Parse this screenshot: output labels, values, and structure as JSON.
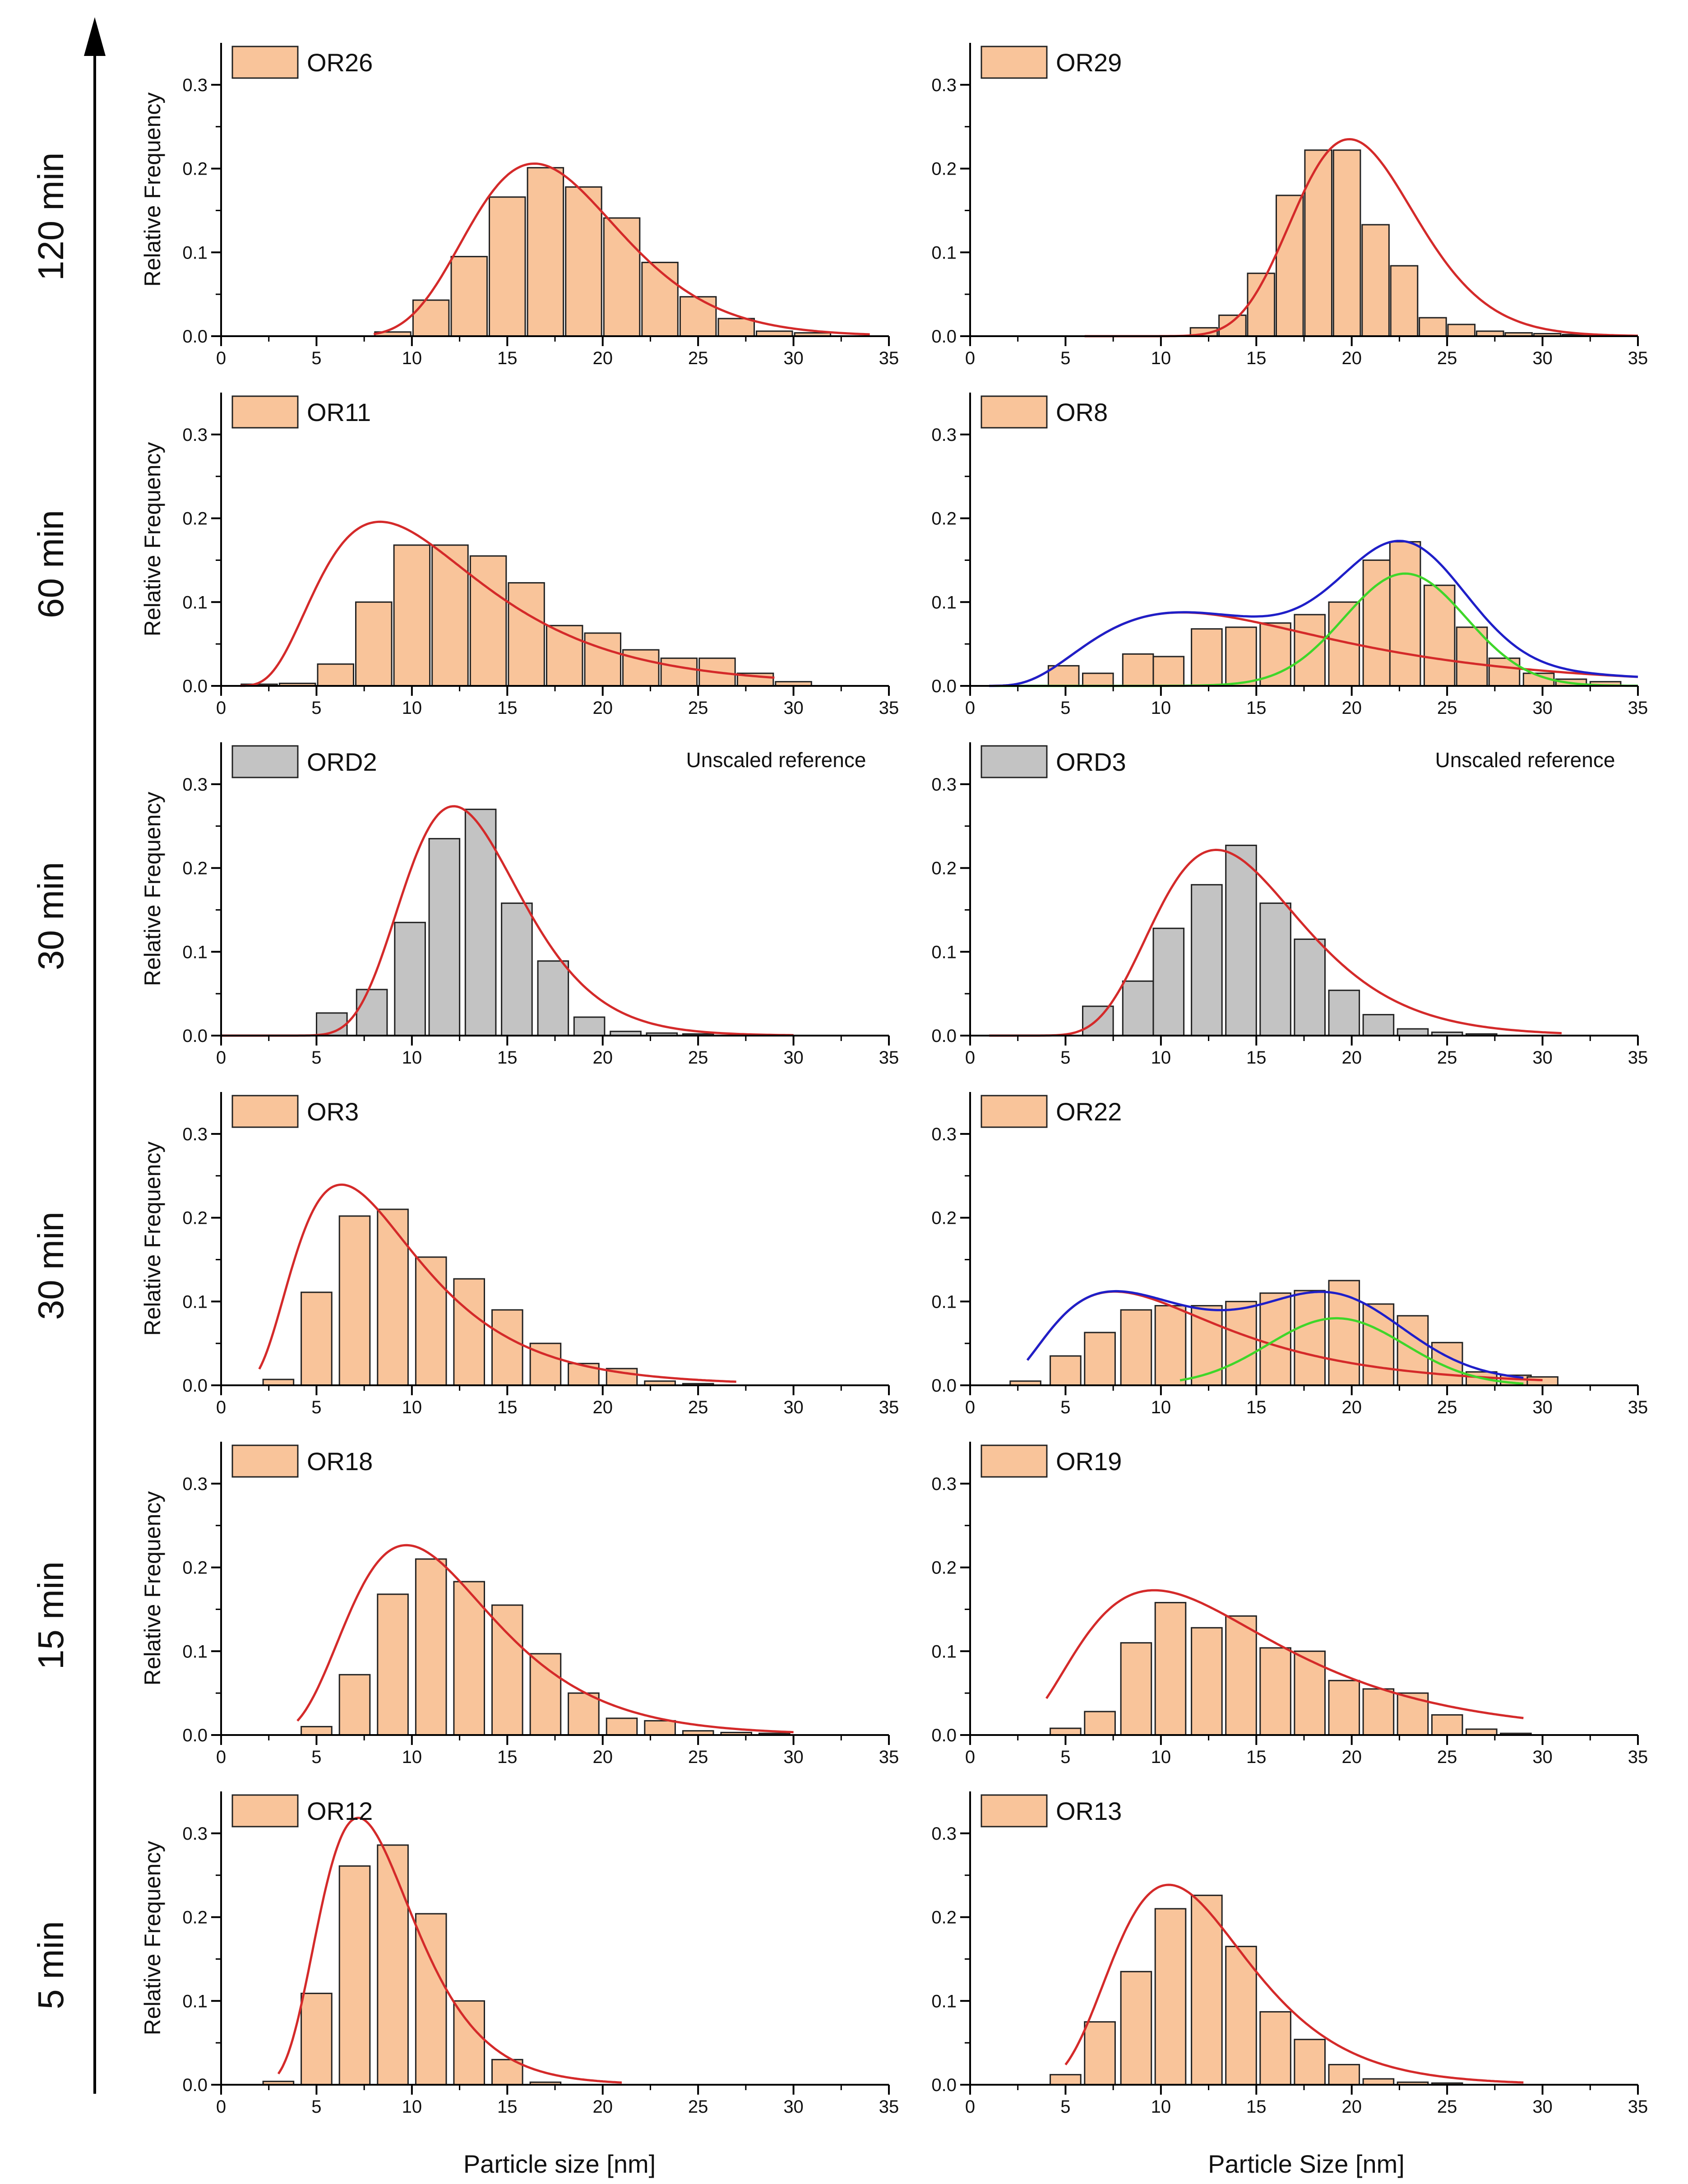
{
  "figure": {
    "timeline_labels": [
      "120 min",
      "60 min",
      "30 min",
      "30 min",
      "15 min",
      "5 min"
    ],
    "xlabels": [
      "Particle size [nm]",
      "Particle Size [nm]"
    ],
    "colors": {
      "bar_fill": "#F9C49A",
      "ref_fill": "#C3C3C3",
      "bar_stroke": "#222222",
      "fit_red": "#D42A2A",
      "fit_blue": "#1F1FC8",
      "fit_green": "#3FD62A",
      "axis": "#000000"
    }
  },
  "chart_data": [
    {
      "id": "OR26",
      "type": "bar",
      "legend": "OR26",
      "ylabel": "Relative Frequency",
      "xlabel": "",
      "reference": false,
      "note": "",
      "xlim": [
        0,
        35
      ],
      "ylim": [
        0,
        0.35
      ],
      "xticks": [
        0,
        5,
        10,
        15,
        20,
        25,
        30,
        35
      ],
      "yticks": [
        0.0,
        0.1,
        0.2,
        0.3
      ],
      "bin_width": 2,
      "bin_centers": [
        9,
        11,
        13,
        15,
        17,
        19,
        21,
        23,
        25,
        27,
        29,
        31
      ],
      "values": [
        0.005,
        0.043,
        0.095,
        0.166,
        0.201,
        0.178,
        0.141,
        0.088,
        0.047,
        0.021,
        0.006,
        0.004
      ],
      "fits": [
        {
          "name": "fit",
          "color": "fit_red",
          "kind": "lognormal",
          "mu": 17.4,
          "sigma": 4.2,
          "amp": 0.2,
          "x_range": [
            8,
            34
          ]
        }
      ]
    },
    {
      "id": "OR29",
      "type": "bar",
      "legend": "OR29",
      "ylabel": "",
      "xlabel": "",
      "reference": false,
      "note": "",
      "xlim": [
        0,
        35
      ],
      "ylim": [
        0,
        0.35
      ],
      "xticks": [
        0,
        5,
        10,
        15,
        20,
        25,
        30,
        35
      ],
      "yticks": [
        0.0,
        0.1,
        0.2,
        0.3
      ],
      "bin_width": 1.5,
      "bin_centers": [
        12.25,
        13.75,
        15.25,
        16.75,
        18.25,
        19.75,
        21.25,
        22.75,
        24.25,
        25.75,
        27.25,
        28.75,
        30.25,
        31.75
      ],
      "values": [
        0.01,
        0.025,
        0.075,
        0.168,
        0.222,
        0.222,
        0.133,
        0.084,
        0.022,
        0.014,
        0.006,
        0.004,
        0.003,
        0.002
      ],
      "fits": [
        {
          "name": "fit",
          "color": "fit_red",
          "kind": "lognormal",
          "mu": 20.4,
          "sigma": 3.3,
          "amp": 0.232,
          "x_range": [
            6,
            35
          ]
        }
      ]
    },
    {
      "id": "OR11",
      "type": "bar",
      "legend": "OR11",
      "ylabel": "Relative Frequency",
      "xlabel": "",
      "reference": false,
      "note": "",
      "xlim": [
        0,
        35
      ],
      "ylim": [
        0,
        0.35
      ],
      "xticks": [
        0,
        5,
        10,
        15,
        20,
        25,
        30,
        35
      ],
      "yticks": [
        0.0,
        0.1,
        0.2,
        0.3
      ],
      "bin_width": 2,
      "bin_centers": [
        2,
        4,
        6,
        8,
        10,
        12,
        14,
        16,
        18,
        20,
        22,
        24,
        26,
        28,
        30
      ],
      "values": [
        0.002,
        0.003,
        0.026,
        0.1,
        0.168,
        0.168,
        0.155,
        0.123,
        0.072,
        0.063,
        0.043,
        0.033,
        0.033,
        0.015,
        0.005
      ],
      "fits": [
        {
          "name": "fit",
          "color": "fit_red",
          "kind": "lognormal",
          "mu": 10.8,
          "sigma": 5.5,
          "amp": 0.172,
          "x_range": [
            1,
            29
          ]
        }
      ]
    },
    {
      "id": "OR8",
      "type": "bar",
      "legend": "OR8",
      "ylabel": "",
      "xlabel": "",
      "reference": false,
      "note": "",
      "xlim": [
        0,
        35
      ],
      "ylim": [
        0,
        0.35
      ],
      "xticks": [
        0,
        5,
        10,
        15,
        20,
        25,
        30,
        35
      ],
      "yticks": [
        0.0,
        0.1,
        0.2,
        0.3
      ],
      "bin_width": 1.7,
      "bin_centers": [
        4.9,
        6.7,
        8.8,
        10.4,
        12.4,
        14.2,
        16.0,
        17.8,
        19.6,
        21.4,
        22.8,
        24.6,
        26.3,
        28.0,
        29.8,
        31.5,
        33.3
      ],
      "values": [
        0.024,
        0.015,
        0.038,
        0.035,
        0.068,
        0.07,
        0.075,
        0.085,
        0.1,
        0.15,
        0.172,
        0.12,
        0.07,
        0.033,
        0.015,
        0.008,
        0.005
      ],
      "fits": [
        {
          "name": "component-1",
          "color": "fit_red",
          "kind": "lognormal",
          "mu": 15.2,
          "sigma": 8.5,
          "amp": 0.075,
          "x_range": [
            1,
            35
          ]
        },
        {
          "name": "component-2",
          "color": "fit_green",
          "kind": "gauss",
          "mu": 22.8,
          "sigma": 3.2,
          "amp": 0.134,
          "x_range": [
            1,
            35
          ]
        },
        {
          "name": "sum",
          "color": "fit_blue",
          "kind": "sum",
          "x_range": [
            1,
            35
          ]
        }
      ]
    },
    {
      "id": "ORD2",
      "type": "bar",
      "legend": "ORD2",
      "ylabel": "Relative Frequency",
      "xlabel": "",
      "reference": true,
      "note": "Unscaled reference",
      "xlim": [
        0,
        35
      ],
      "ylim": [
        0,
        0.35
      ],
      "xticks": [
        0,
        5,
        10,
        15,
        20,
        25,
        30,
        35
      ],
      "yticks": [
        0.0,
        0.1,
        0.2,
        0.3
      ],
      "bin_width": 1.7,
      "bin_centers": [
        5.8,
        7.9,
        9.9,
        11.7,
        13.6,
        15.5,
        17.4,
        19.3,
        21.2,
        23.1,
        25.0
      ],
      "values": [
        0.027,
        0.055,
        0.135,
        0.235,
        0.27,
        0.158,
        0.089,
        0.022,
        0.005,
        0.003,
        0.002
      ],
      "fits": [
        {
          "name": "fit",
          "color": "fit_red",
          "kind": "lognormal",
          "mu": 13.0,
          "sigma": 3.3,
          "amp": 0.265,
          "x_range": [
            0,
            30
          ]
        }
      ]
    },
    {
      "id": "ORD3",
      "type": "bar",
      "legend": "ORD3",
      "ylabel": "",
      "xlabel": "",
      "reference": true,
      "note": "Unscaled reference",
      "xlim": [
        0,
        35
      ],
      "ylim": [
        0,
        0.35
      ],
      "xticks": [
        0,
        5,
        10,
        15,
        20,
        25,
        30,
        35
      ],
      "yticks": [
        0.0,
        0.1,
        0.2,
        0.3
      ],
      "bin_width": 1.7,
      "bin_centers": [
        6.7,
        8.8,
        10.4,
        12.4,
        14.2,
        16.0,
        17.8,
        19.6,
        21.4,
        23.2,
        25.0,
        26.8
      ],
      "values": [
        0.035,
        0.065,
        0.128,
        0.18,
        0.227,
        0.158,
        0.115,
        0.054,
        0.025,
        0.008,
        0.004,
        0.002
      ],
      "fits": [
        {
          "name": "fit",
          "color": "fit_red",
          "kind": "lognormal",
          "mu": 14.1,
          "sigma": 4.2,
          "amp": 0.212,
          "x_range": [
            1,
            31
          ]
        }
      ]
    },
    {
      "id": "OR3",
      "type": "bar",
      "legend": "OR3",
      "ylabel": "Relative Frequency",
      "xlabel": "",
      "reference": false,
      "note": "",
      "xlim": [
        0,
        35
      ],
      "ylim": [
        0,
        0.35
      ],
      "xticks": [
        0,
        5,
        10,
        15,
        20,
        25,
        30,
        35
      ],
      "yticks": [
        0.0,
        0.1,
        0.2,
        0.3
      ],
      "bin_width": 1.7,
      "bin_centers": [
        3,
        5,
        7,
        9,
        11,
        13,
        15,
        17,
        19,
        21,
        23,
        25
      ],
      "values": [
        0.007,
        0.111,
        0.202,
        0.21,
        0.153,
        0.127,
        0.09,
        0.05,
        0.026,
        0.02,
        0.005,
        0.002
      ],
      "fits": [
        {
          "name": "fit",
          "color": "fit_red",
          "kind": "lognormal",
          "mu": 8.2,
          "sigma": 4.2,
          "amp": 0.21,
          "x_range": [
            2,
            27
          ]
        }
      ]
    },
    {
      "id": "OR22",
      "type": "bar",
      "legend": "OR22",
      "ylabel": "",
      "xlabel": "",
      "reference": false,
      "note": "",
      "xlim": [
        0,
        35
      ],
      "ylim": [
        0,
        0.35
      ],
      "xticks": [
        0,
        5,
        10,
        15,
        20,
        25,
        30,
        35
      ],
      "yticks": [
        0.0,
        0.1,
        0.2,
        0.3
      ],
      "bin_width": 1.7,
      "bin_centers": [
        2.9,
        5.0,
        6.8,
        8.7,
        10.5,
        12.4,
        14.2,
        16.0,
        17.8,
        19.6,
        21.4,
        23.2,
        25.0,
        26.8,
        28.6,
        30.0
      ],
      "values": [
        0.005,
        0.035,
        0.063,
        0.09,
        0.095,
        0.095,
        0.1,
        0.11,
        0.113,
        0.125,
        0.097,
        0.083,
        0.051,
        0.016,
        0.012,
        0.01
      ],
      "fits": [
        {
          "name": "component-1",
          "color": "fit_red",
          "kind": "lognormal",
          "mu": 10.5,
          "sigma": 6.0,
          "amp": 0.095,
          "x_range": [
            3,
            30
          ]
        },
        {
          "name": "component-2",
          "color": "fit_green",
          "kind": "gauss",
          "mu": 19.2,
          "sigma": 3.6,
          "amp": 0.08,
          "x_range": [
            11,
            29
          ]
        },
        {
          "name": "sum",
          "color": "fit_blue",
          "kind": "sum",
          "x_range": [
            3,
            29
          ]
        }
      ]
    },
    {
      "id": "OR18",
      "type": "bar",
      "legend": "OR18",
      "ylabel": "Relative Frequency",
      "xlabel": "",
      "reference": false,
      "note": "",
      "xlim": [
        0,
        35
      ],
      "ylim": [
        0,
        0.35
      ],
      "xticks": [
        0,
        5,
        10,
        15,
        20,
        25,
        30,
        35
      ],
      "yticks": [
        0.0,
        0.1,
        0.2,
        0.3
      ],
      "bin_width": 1.7,
      "bin_centers": [
        5,
        7,
        9,
        11,
        13,
        15,
        17,
        19,
        21,
        23,
        25,
        27,
        29
      ],
      "values": [
        0.01,
        0.072,
        0.168,
        0.21,
        0.183,
        0.155,
        0.097,
        0.05,
        0.02,
        0.017,
        0.005,
        0.003,
        0.002
      ],
      "fits": [
        {
          "name": "fit",
          "color": "fit_red",
          "kind": "lognormal",
          "mu": 11.3,
          "sigma": 4.4,
          "amp": 0.21,
          "x_range": [
            4,
            30
          ]
        }
      ]
    },
    {
      "id": "OR19",
      "type": "bar",
      "legend": "OR19",
      "ylabel": "",
      "xlabel": "",
      "reference": false,
      "note": "",
      "xlim": [
        0,
        35
      ],
      "ylim": [
        0,
        0.35
      ],
      "xticks": [
        0,
        5,
        10,
        15,
        20,
        25,
        30,
        35
      ],
      "yticks": [
        0.0,
        0.1,
        0.2,
        0.3
      ],
      "bin_width": 1.7,
      "bin_centers": [
        5.0,
        6.8,
        8.7,
        10.5,
        12.4,
        14.2,
        16.0,
        17.8,
        19.6,
        21.4,
        23.2,
        25.0,
        26.8,
        28.6
      ],
      "values": [
        0.008,
        0.028,
        0.11,
        0.158,
        0.128,
        0.142,
        0.104,
        0.1,
        0.065,
        0.055,
        0.05,
        0.024,
        0.007,
        0.002
      ],
      "fits": [
        {
          "name": "fit",
          "color": "fit_red",
          "kind": "lognormal",
          "mu": 12.8,
          "sigma": 6.8,
          "amp": 0.15,
          "x_range": [
            4,
            29
          ]
        }
      ]
    },
    {
      "id": "OR12",
      "type": "bar",
      "legend": "OR12",
      "ylabel": "Relative Frequency",
      "xlabel": "",
      "reference": false,
      "note": "",
      "xlim": [
        0,
        35
      ],
      "ylim": [
        0,
        0.35
      ],
      "xticks": [
        0,
        5,
        10,
        15,
        20,
        25,
        30,
        35
      ],
      "yticks": [
        0.0,
        0.1,
        0.2,
        0.3
      ],
      "bin_width": 1.7,
      "bin_centers": [
        3,
        5,
        7,
        9,
        11,
        13,
        15,
        17
      ],
      "values": [
        0.004,
        0.109,
        0.261,
        0.286,
        0.204,
        0.1,
        0.03,
        0.003
      ],
      "fits": [
        {
          "name": "fit",
          "color": "fit_red",
          "kind": "lognormal",
          "mu": 8.1,
          "sigma": 2.8,
          "amp": 0.3,
          "x_range": [
            3,
            21
          ]
        }
      ]
    },
    {
      "id": "OR13",
      "type": "bar",
      "legend": "OR13",
      "ylabel": "",
      "xlabel": "",
      "reference": false,
      "note": "",
      "xlim": [
        0,
        35
      ],
      "ylim": [
        0,
        0.35
      ],
      "xticks": [
        0,
        5,
        10,
        15,
        20,
        25,
        30,
        35
      ],
      "yticks": [
        0.0,
        0.1,
        0.2,
        0.3
      ],
      "bin_width": 1.7,
      "bin_centers": [
        5.0,
        6.8,
        8.7,
        10.5,
        12.4,
        14.2,
        16.0,
        17.8,
        19.6,
        21.4,
        23.2,
        25.0
      ],
      "values": [
        0.012,
        0.075,
        0.135,
        0.21,
        0.226,
        0.165,
        0.087,
        0.054,
        0.024,
        0.007,
        0.003,
        0.002
      ],
      "fits": [
        {
          "name": "fit",
          "color": "fit_red",
          "kind": "lognormal",
          "mu": 11.7,
          "sigma": 4.0,
          "amp": 0.225,
          "x_range": [
            5,
            29
          ]
        }
      ]
    }
  ]
}
